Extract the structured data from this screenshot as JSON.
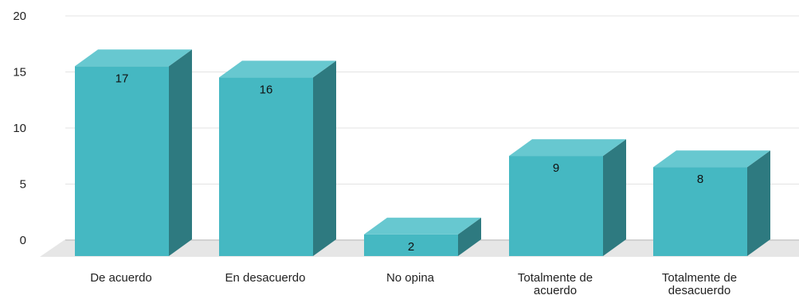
{
  "chart_data": {
    "type": "bar",
    "style": "3d-column",
    "categories": [
      [
        "De acuerdo"
      ],
      [
        "En desacuerdo"
      ],
      [
        "No opina"
      ],
      [
        "Totalmente de",
        "acuerdo"
      ],
      [
        "Totalmente de",
        "desacuerdo"
      ]
    ],
    "values": [
      17,
      16,
      2,
      9,
      8
    ],
    "data_labels": [
      "17",
      "16",
      "2",
      "9",
      "8"
    ],
    "y_ticks": [
      "0",
      "5",
      "10",
      "15",
      "20"
    ],
    "ylim": [
      0,
      20
    ],
    "grid": true,
    "legend": "none",
    "colors": {
      "bar_front": "#45b8c2",
      "bar_top": "#67c8d0",
      "bar_side": "#2e7a80",
      "floor": "#e6e6e6",
      "grid": "#e3e3e3"
    }
  }
}
